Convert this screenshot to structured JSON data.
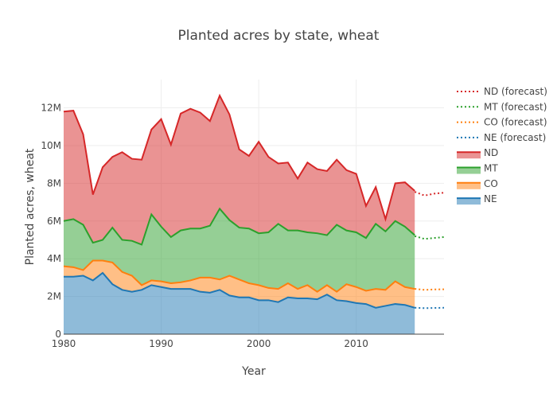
{
  "chart_data": {
    "type": "area",
    "title": "Planted acres by state, wheat",
    "xlabel": "Year",
    "ylabel": "Planted acres, wheat",
    "xlim": [
      1980,
      2019
    ],
    "ylim": [
      0,
      13500000
    ],
    "x_ticks": [
      1980,
      1990,
      2000,
      2010
    ],
    "y_ticks": [
      0,
      2000000,
      4000000,
      6000000,
      8000000,
      10000000,
      12000000
    ],
    "y_tick_labels": [
      "0",
      "2M",
      "4M",
      "6M",
      "8M",
      "10M",
      "12M"
    ],
    "grid": true,
    "legend_position": "right",
    "stacked": true,
    "x": [
      1980,
      1981,
      1982,
      1983,
      1984,
      1985,
      1986,
      1987,
      1988,
      1989,
      1990,
      1991,
      1992,
      1993,
      1994,
      1995,
      1996,
      1997,
      1998,
      1999,
      2000,
      2001,
      2002,
      2003,
      2004,
      2005,
      2006,
      2007,
      2008,
      2009,
      2010,
      2011,
      2012,
      2013,
      2014,
      2015,
      2016
    ],
    "series": [
      {
        "name": "NE",
        "color": "#1f77b4",
        "values": [
          3050000,
          3050000,
          3100000,
          2850000,
          3250000,
          2650000,
          2350000,
          2250000,
          2350000,
          2600000,
          2500000,
          2400000,
          2400000,
          2400000,
          2250000,
          2200000,
          2350000,
          2050000,
          1950000,
          1950000,
          1800000,
          1800000,
          1700000,
          1950000,
          1900000,
          1900000,
          1850000,
          2100000,
          1800000,
          1750000,
          1650000,
          1600000,
          1400000,
          1500000,
          1600000,
          1550000,
          1400000
        ]
      },
      {
        "name": "CO",
        "color": "#ff7f0e",
        "values": [
          550000,
          500000,
          300000,
          1050000,
          650000,
          1150000,
          950000,
          850000,
          250000,
          250000,
          300000,
          300000,
          350000,
          450000,
          750000,
          800000,
          550000,
          1050000,
          950000,
          750000,
          800000,
          650000,
          700000,
          750000,
          500000,
          700000,
          400000,
          500000,
          450000,
          900000,
          850000,
          700000,
          1000000,
          850000,
          1200000,
          950000,
          1000000
        ]
      },
      {
        "name": "MT",
        "color": "#2ca02c",
        "values": [
          2400000,
          2550000,
          2400000,
          950000,
          1100000,
          1850000,
          1700000,
          1850000,
          2150000,
          3500000,
          2900000,
          2450000,
          2750000,
          2750000,
          2600000,
          2750000,
          3750000,
          2950000,
          2750000,
          2900000,
          2750000,
          2950000,
          3450000,
          2800000,
          3100000,
          2800000,
          3100000,
          2650000,
          3550000,
          2850000,
          2900000,
          2800000,
          3450000,
          3100000,
          3200000,
          3200000,
          2850000
        ]
      },
      {
        "name": "ND",
        "color": "#d62728",
        "values": [
          5800000,
          5750000,
          4800000,
          2550000,
          3850000,
          3750000,
          4650000,
          4350000,
          4500000,
          4500000,
          5700000,
          4900000,
          6200000,
          6350000,
          6150000,
          5550000,
          6000000,
          5600000,
          4150000,
          3850000,
          4850000,
          4000000,
          3200000,
          3600000,
          2750000,
          3700000,
          3400000,
          3400000,
          3450000,
          3200000,
          3100000,
          1700000,
          1950000,
          650000,
          2000000,
          2350000,
          2350000
        ]
      }
    ],
    "forecast_x": [
      2016,
      2017,
      2018,
      2019
    ],
    "forecast_series": [
      {
        "name": "ND (forecast)",
        "color": "#d62728",
        "values": [
          7550000,
          7350000,
          7450000,
          7500000
        ]
      },
      {
        "name": "MT (forecast)",
        "color": "#2ca02c",
        "values": [
          5200000,
          5050000,
          5100000,
          5150000
        ]
      },
      {
        "name": "CO (forecast)",
        "color": "#ff7f0e",
        "values": [
          2400000,
          2350000,
          2370000,
          2380000
        ]
      },
      {
        "name": "NE (forecast)",
        "color": "#1f77b4",
        "values": [
          1400000,
          1380000,
          1390000,
          1400000
        ]
      }
    ]
  }
}
